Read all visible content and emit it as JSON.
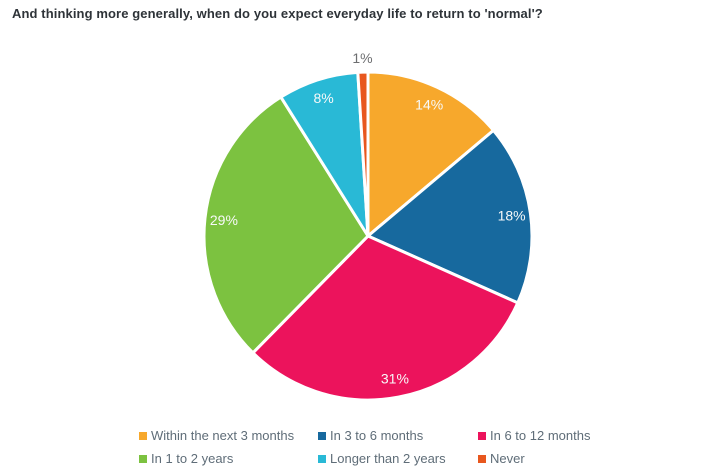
{
  "header": {
    "title": "And thinking more generally, when do you expect everyday life to return to 'normal'?"
  },
  "styles": {
    "background": "#ffffff",
    "title_color": "#2E3338",
    "legend_text_color": "#5F6D78",
    "label_inside_color": "#F7F9F9",
    "label_outside_color": "#6D6E70",
    "slice_border_color": "#ffffff"
  },
  "chart_data": {
    "type": "pie",
    "title": "And thinking more generally, when do you expect everyday life to return to 'normal'?",
    "start_angle_deg": 0,
    "direction": "clockwise",
    "legend_position": "bottom",
    "value_format": "percent",
    "slices": [
      {
        "label": "Within the next 3 months",
        "value": 14,
        "color": "#F7A82C",
        "label_outside": false
      },
      {
        "label": "In 3 to 6 months",
        "value": 18,
        "color": "#17699E",
        "label_outside": false
      },
      {
        "label": "In 6 to 12 months",
        "value": 31,
        "color": "#EC135C",
        "label_outside": false
      },
      {
        "label": "In 1 to 2 years",
        "value": 29,
        "color": "#7CC240",
        "label_outside": false
      },
      {
        "label": "Longer than 2 years",
        "value": 8,
        "color": "#29B9D6",
        "label_outside": false
      },
      {
        "label": "Never",
        "value": 1,
        "color": "#E8571E",
        "label_outside": true
      }
    ]
  }
}
